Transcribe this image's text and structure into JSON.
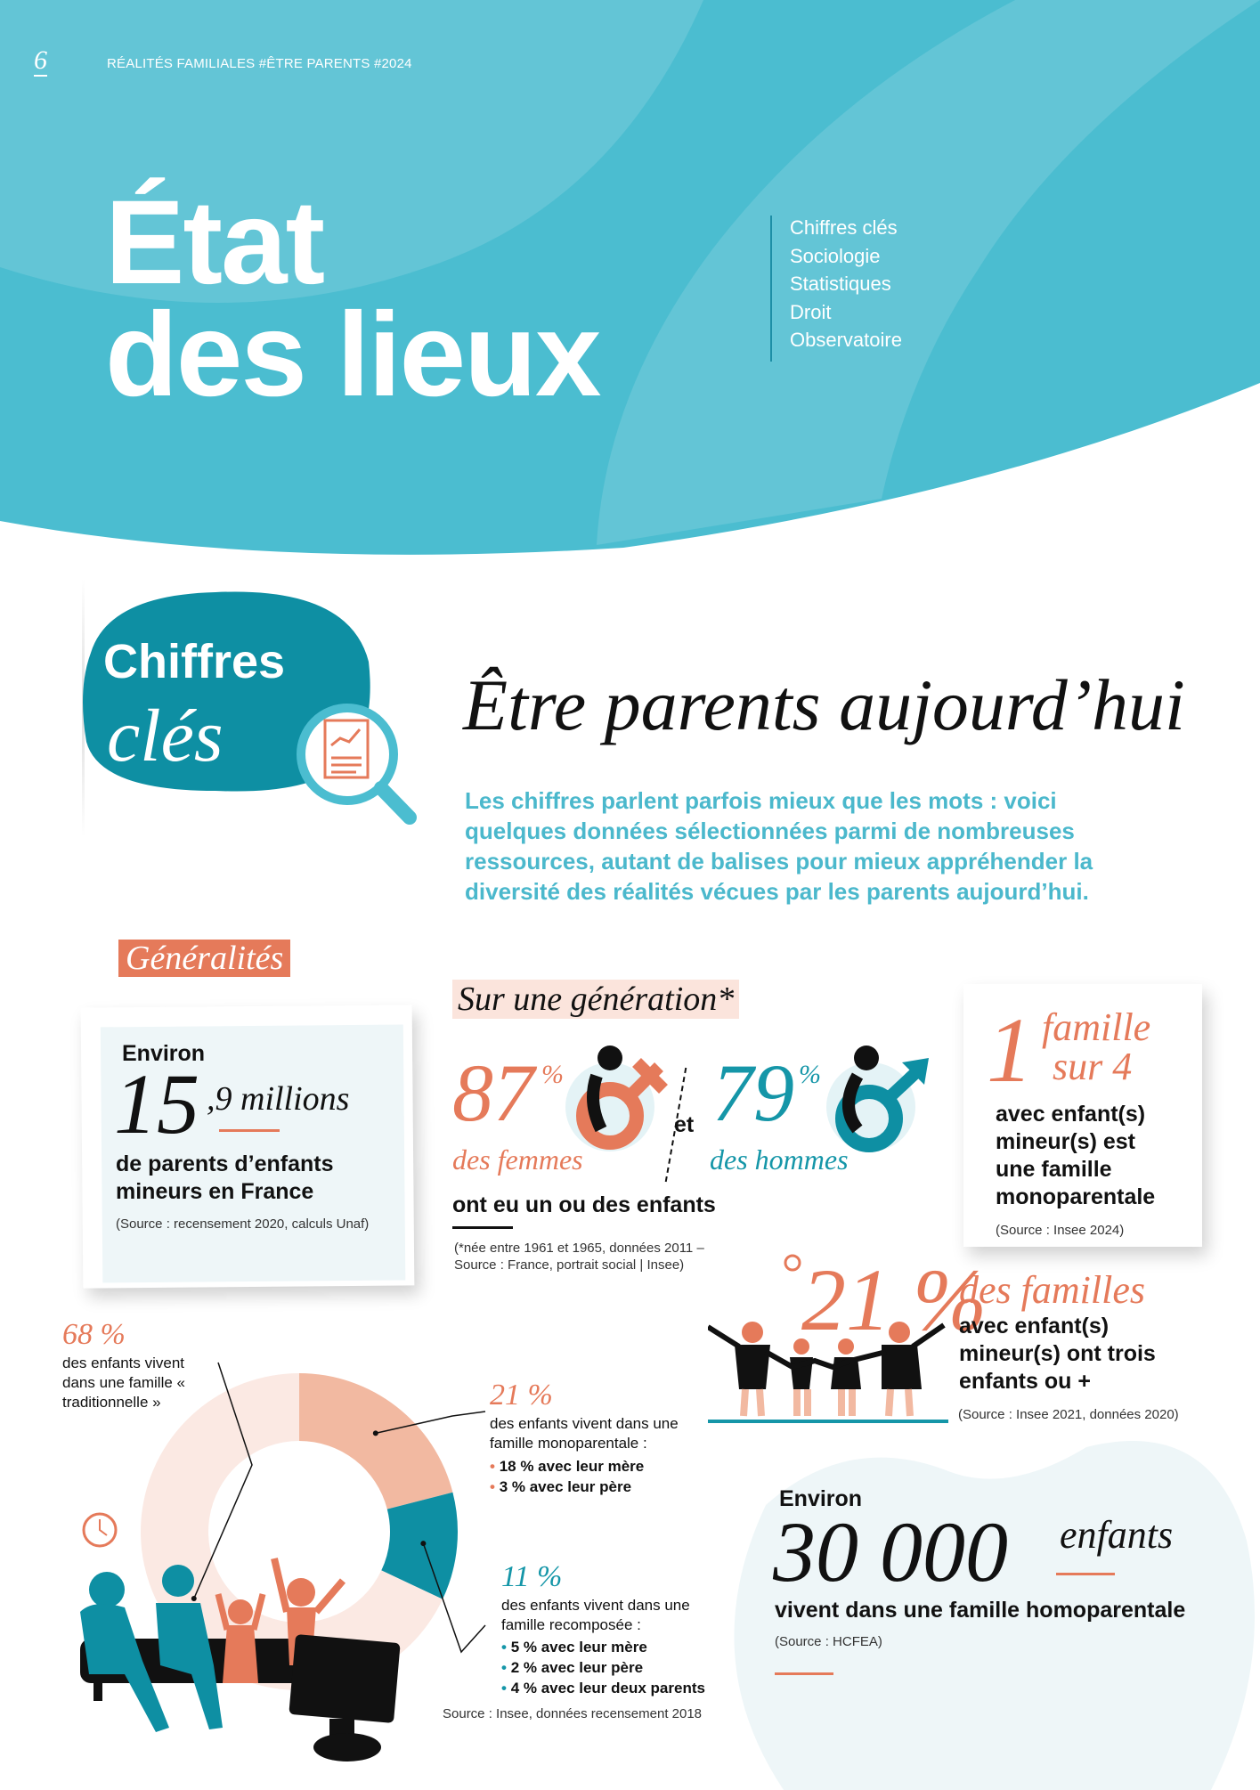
{
  "header": {
    "page_number": "6",
    "running_title": "RÉALITÉS FAMILIALES #ÊTRE PARENTS #2024"
  },
  "hero": {
    "title_line1": "État",
    "title_line2": "des lieux",
    "menu": [
      "Chiffres clés",
      "Sociologie",
      "Statistiques",
      "Droit",
      "Observatoire"
    ]
  },
  "colors": {
    "teal": "#4bbdd0",
    "teal_dark": "#0e8fa3",
    "orange": "#e57a5a",
    "salmon": "#f2b9a1",
    "light_pink": "#fbe9e3",
    "light_blue": "#eef6f8"
  },
  "section": {
    "badge_line1": "Chiffres",
    "badge_line2": "clés",
    "badge_icon": "magnifier-chart-icon",
    "title": "Être parents aujourd’hui",
    "intro": "Les chiffres parlent parfois mieux que les mots : voici quelques données sélectionnées parmi de nombreuses ressources, autant de balises pour mieux appréhender la diversité des réalités vécues par les parents aujourd’hui."
  },
  "generalites": {
    "tag": "Généralités"
  },
  "parents": {
    "prefix": "Environ",
    "big": "15",
    "decimal": ",9",
    "unit": "millions",
    "text": "de parents d’enfants mineurs en France",
    "source": "(Source : recensement 2020, calculs Unaf)"
  },
  "generation": {
    "tag": "Sur une génération*",
    "women_value": "87",
    "women_pct": "%",
    "women_label": "des femmes",
    "and": "et",
    "men_value": "79",
    "men_pct": "%",
    "men_label": "des hommes",
    "text": "ont eu un ou des enfants",
    "footnote": "(*née entre 1961 et 1965, données 2011 – Source : France, portrait social | Insee)"
  },
  "monoparentale": {
    "big": "1",
    "line1": "famille",
    "line2": "sur 4",
    "text": "avec enfant(s) mineur(s) est une famille monoparentale",
    "source": "(Source : Insee 2024)"
  },
  "nombreuses": {
    "value": "21 %",
    "label": "des familles",
    "text": "avec enfant(s) mineur(s) ont trois enfants ou +",
    "source": "(Source : Insee 2021, données 2020)"
  },
  "homoparentale": {
    "prefix": "Environ",
    "big": "30 000",
    "unit": "enfants",
    "text": "vivent dans une famille homoparentale",
    "source": "(Source : HCFEA)"
  },
  "chart_data": {
    "type": "pie",
    "donut": true,
    "categories": [
      "famille « traditionnelle »",
      "famille monoparentale",
      "famille recomposée"
    ],
    "values": [
      68,
      21,
      11
    ],
    "colors": [
      "#fbe9e3",
      "#f2b9a1",
      "#0e8fa3"
    ],
    "labels": [
      {
        "value": "68 %",
        "text": "des enfants vivent dans une famille « traditionnelle »",
        "details": []
      },
      {
        "value": "21 %",
        "text": "des enfants vivent dans une famille monoparentale :",
        "details": [
          "18 % avec leur mère",
          "3 % avec leur père"
        ]
      },
      {
        "value": "11 %",
        "text": "des enfants vivent dans une famille recomposée :",
        "details": [
          "5 % avec leur mère",
          "2 % avec leur père",
          "4 % avec leur deux parents"
        ]
      }
    ],
    "source": "Source : Insee, données recensement 2018"
  }
}
